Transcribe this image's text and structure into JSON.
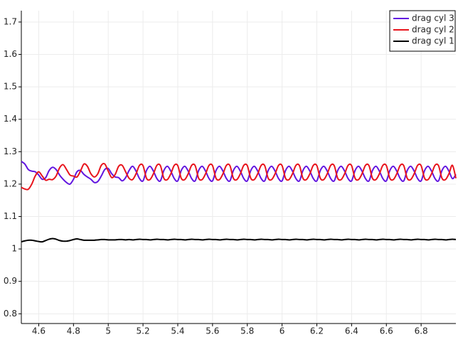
{
  "chart_data": {
    "type": "line",
    "x": [
      4.5,
      4.52,
      4.54,
      4.56,
      4.58,
      4.6,
      4.62,
      4.64,
      4.66,
      4.68,
      4.7,
      4.72,
      4.74,
      4.76,
      4.78,
      4.8,
      4.82,
      4.84,
      4.86,
      4.88,
      4.9,
      4.92,
      4.94,
      4.96,
      4.98,
      5,
      5.02,
      5.04,
      5.06,
      5.08,
      5.1,
      5.12,
      5.14,
      5.16,
      5.18,
      5.2,
      5.22,
      5.24,
      5.26,
      5.28,
      5.3,
      5.32,
      5.34,
      5.36,
      5.38,
      5.4,
      5.42,
      5.44,
      5.46,
      5.48,
      5.5,
      5.52,
      5.54,
      5.56,
      5.58,
      5.6,
      5.62,
      5.64,
      5.66,
      5.68,
      5.7,
      5.72,
      5.74,
      5.76,
      5.78,
      5.8,
      5.82,
      5.84,
      5.86,
      5.88,
      5.9,
      5.92,
      5.94,
      5.96,
      5.98,
      6,
      6.02,
      6.04,
      6.06,
      6.08,
      6.1,
      6.12,
      6.14,
      6.16,
      6.18,
      6.2,
      6.22,
      6.24,
      6.26,
      6.28,
      6.3,
      6.32,
      6.34,
      6.36,
      6.38,
      6.4,
      6.42,
      6.44,
      6.46,
      6.48,
      6.5,
      6.52,
      6.54,
      6.56,
      6.58,
      6.6,
      6.62,
      6.64,
      6.66,
      6.68,
      6.7,
      6.72,
      6.74,
      6.76,
      6.78,
      6.8,
      6.82,
      6.84,
      6.86,
      6.88,
      6.9,
      6.92,
      6.94,
      6.96,
      6.98,
      7
    ],
    "series": [
      {
        "name": "drag cyl 3",
        "color": "#6216e0",
        "values": [
          1.27,
          1.262,
          1.245,
          1.24,
          1.238,
          1.228,
          1.215,
          1.22,
          1.242,
          1.252,
          1.245,
          1.228,
          1.215,
          1.205,
          1.2,
          1.215,
          1.238,
          1.242,
          1.23,
          1.222,
          1.215,
          1.205,
          1.208,
          1.225,
          1.245,
          1.248,
          1.232,
          1.222,
          1.22,
          1.21,
          1.22,
          1.242,
          1.255,
          1.24,
          1.217,
          1.21,
          1.242,
          1.255,
          1.24,
          1.217,
          1.21,
          1.242,
          1.255,
          1.24,
          1.217,
          1.21,
          1.242,
          1.255,
          1.24,
          1.217,
          1.21,
          1.242,
          1.255,
          1.24,
          1.217,
          1.21,
          1.242,
          1.255,
          1.24,
          1.217,
          1.21,
          1.242,
          1.255,
          1.24,
          1.217,
          1.21,
          1.242,
          1.255,
          1.24,
          1.217,
          1.21,
          1.242,
          1.255,
          1.24,
          1.217,
          1.21,
          1.242,
          1.255,
          1.24,
          1.217,
          1.21,
          1.242,
          1.255,
          1.24,
          1.217,
          1.21,
          1.242,
          1.255,
          1.24,
          1.217,
          1.21,
          1.242,
          1.255,
          1.24,
          1.217,
          1.21,
          1.242,
          1.255,
          1.24,
          1.217,
          1.21,
          1.242,
          1.255,
          1.24,
          1.217,
          1.21,
          1.242,
          1.255,
          1.24,
          1.217,
          1.21,
          1.242,
          1.255,
          1.24,
          1.217,
          1.21,
          1.242,
          1.255,
          1.24,
          1.217,
          1.21,
          1.242,
          1.255,
          1.24,
          1.217,
          1.23
        ]
      },
      {
        "name": "drag cyl 2",
        "color": "#e8141c",
        "values": [
          1.19,
          1.185,
          1.184,
          1.2,
          1.225,
          1.238,
          1.225,
          1.212,
          1.215,
          1.214,
          1.225,
          1.25,
          1.26,
          1.245,
          1.228,
          1.225,
          1.222,
          1.24,
          1.262,
          1.255,
          1.232,
          1.222,
          1.232,
          1.258,
          1.262,
          1.24,
          1.22,
          1.23,
          1.255,
          1.258,
          1.238,
          1.218,
          1.214,
          1.232,
          1.258,
          1.257,
          1.218,
          1.214,
          1.232,
          1.258,
          1.257,
          1.218,
          1.214,
          1.232,
          1.258,
          1.257,
          1.218,
          1.214,
          1.232,
          1.258,
          1.257,
          1.218,
          1.214,
          1.232,
          1.258,
          1.257,
          1.218,
          1.214,
          1.232,
          1.258,
          1.257,
          1.218,
          1.214,
          1.232,
          1.258,
          1.257,
          1.218,
          1.214,
          1.232,
          1.258,
          1.257,
          1.218,
          1.214,
          1.232,
          1.258,
          1.257,
          1.218,
          1.214,
          1.232,
          1.258,
          1.257,
          1.218,
          1.214,
          1.232,
          1.258,
          1.257,
          1.218,
          1.214,
          1.232,
          1.258,
          1.257,
          1.218,
          1.214,
          1.232,
          1.258,
          1.257,
          1.218,
          1.214,
          1.232,
          1.258,
          1.257,
          1.218,
          1.214,
          1.232,
          1.258,
          1.257,
          1.218,
          1.214,
          1.232,
          1.258,
          1.257,
          1.218,
          1.214,
          1.232,
          1.258,
          1.257,
          1.218,
          1.214,
          1.232,
          1.258,
          1.257,
          1.218,
          1.214,
          1.232,
          1.258,
          1.218
        ]
      },
      {
        "name": "drag cyl 1",
        "color": "#000000",
        "values": [
          1.022,
          1.025,
          1.027,
          1.027,
          1.025,
          1.023,
          1.022,
          1.026,
          1.03,
          1.032,
          1.03,
          1.026,
          1.024,
          1.024,
          1.026,
          1.029,
          1.031,
          1.029,
          1.027,
          1.027,
          1.027,
          1.027,
          1.028,
          1.029,
          1.029,
          1.028,
          1.028,
          1.028,
          1.029,
          1.029,
          1.028,
          1.029,
          1.028,
          1.029,
          1.03,
          1.029,
          1.029,
          1.028,
          1.029,
          1.03,
          1.029,
          1.029,
          1.028,
          1.029,
          1.03,
          1.029,
          1.029,
          1.028,
          1.029,
          1.03,
          1.029,
          1.029,
          1.028,
          1.029,
          1.03,
          1.029,
          1.029,
          1.028,
          1.029,
          1.03,
          1.029,
          1.029,
          1.028,
          1.029,
          1.03,
          1.029,
          1.029,
          1.028,
          1.029,
          1.03,
          1.029,
          1.029,
          1.028,
          1.029,
          1.03,
          1.029,
          1.029,
          1.028,
          1.029,
          1.03,
          1.029,
          1.029,
          1.028,
          1.029,
          1.03,
          1.029,
          1.029,
          1.028,
          1.029,
          1.03,
          1.029,
          1.029,
          1.028,
          1.029,
          1.03,
          1.029,
          1.029,
          1.028,
          1.029,
          1.03,
          1.029,
          1.029,
          1.028,
          1.029,
          1.03,
          1.029,
          1.029,
          1.028,
          1.029,
          1.03,
          1.029,
          1.029,
          1.028,
          1.029,
          1.03,
          1.029,
          1.029,
          1.028,
          1.029,
          1.03,
          1.029,
          1.029,
          1.028,
          1.029,
          1.03,
          1.029
        ]
      }
    ],
    "xlim": [
      4.5,
      7.0
    ],
    "ylim": [
      0.77,
      1.735
    ],
    "xticks": [
      4.6,
      4.8,
      5,
      5.2,
      5.4,
      5.6,
      5.8,
      6,
      6.2,
      6.4,
      6.6,
      6.8
    ],
    "yticks": [
      0.8,
      0.9,
      1,
      1.1,
      1.2,
      1.3,
      1.4,
      1.5,
      1.6,
      1.7
    ],
    "grid": true,
    "legend": "top-right"
  }
}
